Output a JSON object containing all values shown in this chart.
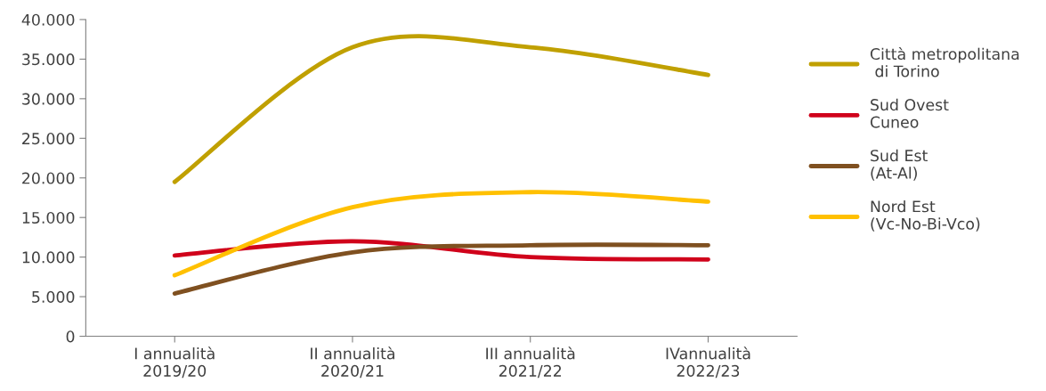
{
  "chart_data": {
    "type": "line",
    "categories": [
      "I annualità\n2019/20",
      "II annualità\n2020/21",
      "III annualità\n2021/22",
      "IVannualità\n2022/23"
    ],
    "series": [
      {
        "name": "Città metropolitana\n di Torino",
        "color": "#c0a000",
        "values": [
          19500,
          36500,
          36500,
          33000
        ]
      },
      {
        "name": "Sud Ovest\nCuneo",
        "color": "#d0021b",
        "values": [
          10200,
          12000,
          10000,
          9700
        ]
      },
      {
        "name": "Sud Est\n(At-Al)",
        "color": "#7f5020",
        "values": [
          5400,
          10600,
          11500,
          11500
        ]
      },
      {
        "name": "Nord Est\n(Vc-No-Bi-Vco)",
        "color": "#ffc000",
        "values": [
          7700,
          16300,
          18200,
          17000
        ]
      }
    ],
    "ylim": [
      0,
      40000
    ],
    "yticks": [
      {
        "value": 0,
        "label": "0"
      },
      {
        "value": 5000,
        "label": "5.000"
      },
      {
        "value": 10000,
        "label": "10.000"
      },
      {
        "value": 15000,
        "label": "15.000"
      },
      {
        "value": 20000,
        "label": "20.000"
      },
      {
        "value": 25000,
        "label": "25.000"
      },
      {
        "value": 30000,
        "label": "30.000"
      },
      {
        "value": 35000,
        "label": "35.000"
      },
      {
        "value": 40000,
        "label": "40.000"
      }
    ],
    "grid": false,
    "legend": "right",
    "marker": "none",
    "line_style": "solid"
  }
}
